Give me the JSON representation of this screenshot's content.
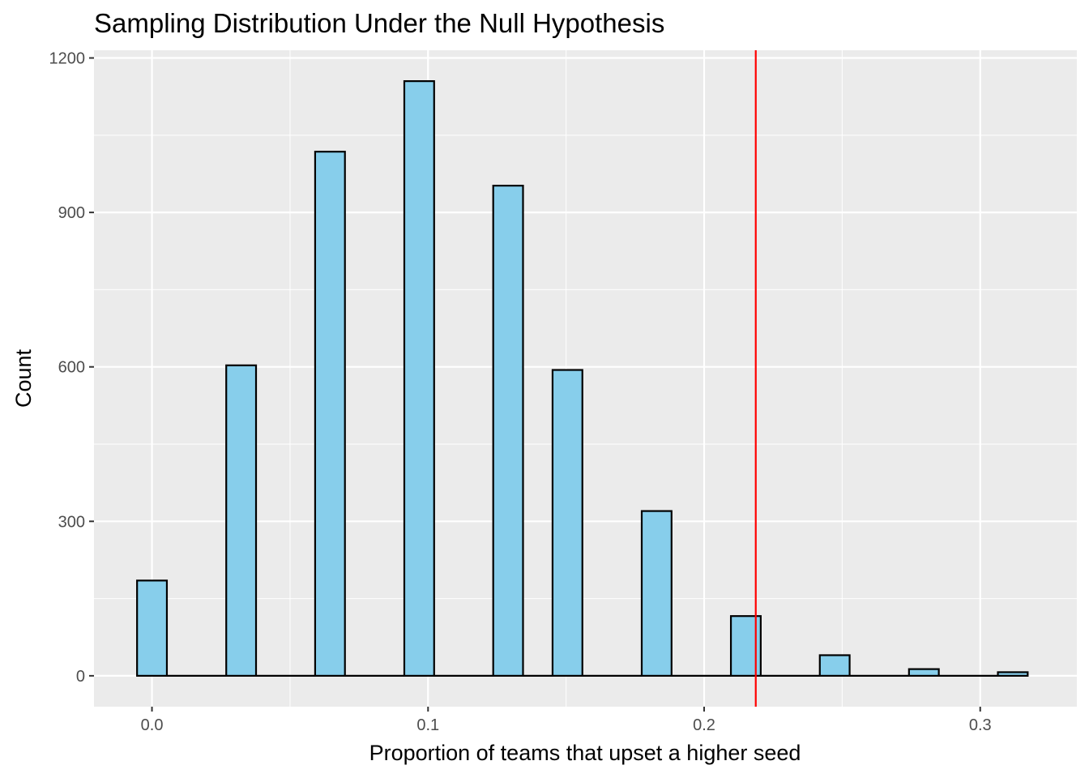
{
  "chart_data": {
    "type": "bar",
    "title": "Sampling Distribution Under the Null Hypothesis",
    "xlabel": "Proportion of teams that upset a higher seed",
    "ylabel": "Count",
    "xlim": [
      -0.021,
      0.335
    ],
    "ylim": [
      -60,
      1215
    ],
    "x_ticks": [
      0.0,
      0.1,
      0.2,
      0.3
    ],
    "x_tick_labels": [
      "0.0",
      "0.1",
      "0.2",
      "0.3"
    ],
    "y_ticks": [
      0,
      300,
      600,
      900,
      1200
    ],
    "y_tick_labels": [
      "0",
      "300",
      "600",
      "900",
      "1200"
    ],
    "bin_width": 0.0108,
    "bins": [
      {
        "x": 0.0,
        "count": 185
      },
      {
        "x": 0.0323,
        "count": 603
      },
      {
        "x": 0.0645,
        "count": 1018
      },
      {
        "x": 0.0968,
        "count": 1155
      },
      {
        "x": 0.129,
        "count": 952
      },
      {
        "x": 0.1505,
        "count": 594
      },
      {
        "x": 0.1828,
        "count": 320
      },
      {
        "x": 0.2151,
        "count": 116
      },
      {
        "x": 0.2473,
        "count": 40
      },
      {
        "x": 0.2796,
        "count": 13
      },
      {
        "x": 0.3118,
        "count": 7
      }
    ],
    "observed_statistic": 0.2187,
    "colors": {
      "panel_background": "#ebebeb",
      "grid": "#ffffff",
      "bar_fill": "#87ceeb",
      "bar_outline": "#000000",
      "reference_line": "#ff0000"
    },
    "grid": true
  }
}
